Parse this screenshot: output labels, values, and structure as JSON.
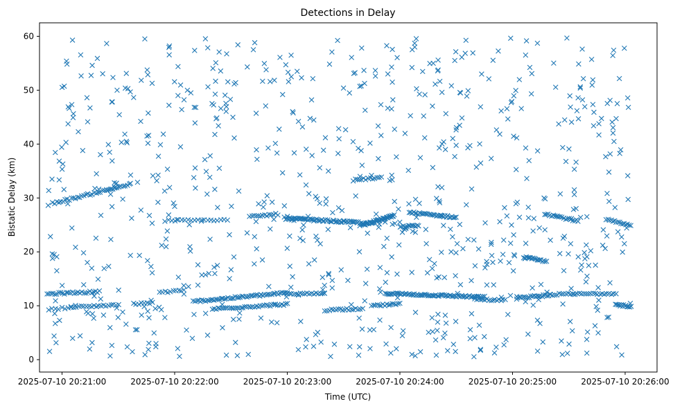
{
  "chart_data": {
    "type": "scatter",
    "title": "Detections in Delay",
    "xlabel": "Time (UTC)",
    "ylabel": "Bistatic Delay (km)",
    "marker": "x",
    "color": "#1f77b4",
    "grid": false,
    "legend": "none",
    "x_ticks": [
      "2025-07-10 20:21:00",
      "2025-07-10 20:22:00",
      "2025-07-10 20:23:00",
      "2025-07-10 20:24:00",
      "2025-07-10 20:25:00",
      "2025-07-10 20:26:00"
    ],
    "y_ticks": [
      "0",
      "10",
      "20",
      "30",
      "40",
      "50",
      "60"
    ],
    "xlim": [
      "2025-07-10 20:20:48",
      "2025-07-10 20:26:17"
    ],
    "ylim": [
      -2.3,
      62.5
    ],
    "series": [
      {
        "comment_omitted": "",
        "tracks": [
          {
            "x": [
              "2025-07-10 20:20:52",
              "2025-07-10 20:21:20"
            ],
            "y": [
              12.2,
              12.6
            ],
            "count": 28
          },
          {
            "x": [
              "2025-07-10 20:20:53",
              "2025-07-10 20:21:05"
            ],
            "y": [
              9.4,
              9.7
            ],
            "count": 8
          },
          {
            "x": [
              "2025-07-10 20:21:05",
              "2025-07-10 20:21:30"
            ],
            "y": [
              9.7,
              10.2
            ],
            "count": 20
          },
          {
            "x": [
              "2025-07-10 20:20:55",
              "2025-07-10 20:21:36"
            ],
            "y": [
              29.0,
              32.5
            ],
            "count": 38
          },
          {
            "x": [
              "2025-07-10 20:21:38",
              "2025-07-10 20:21:48"
            ],
            "y": [
              10.3,
              10.5
            ],
            "count": 8
          },
          {
            "x": [
              "2025-07-10 20:21:55",
              "2025-07-10 20:22:28"
            ],
            "y": [
              25.8,
              25.9
            ],
            "count": 20
          },
          {
            "x": [
              "2025-07-10 20:21:52",
              "2025-07-10 20:22:05"
            ],
            "y": [
              12.5,
              12.8
            ],
            "count": 10
          },
          {
            "x": [
              "2025-07-10 20:22:10",
              "2025-07-10 20:23:00"
            ],
            "y": [
              10.8,
              12.4
            ],
            "count": 55
          },
          {
            "x": [
              "2025-07-10 20:22:20",
              "2025-07-10 20:23:00"
            ],
            "y": [
              9.4,
              10.3
            ],
            "count": 40
          },
          {
            "x": [
              "2025-07-10 20:22:40",
              "2025-07-10 20:22:55"
            ],
            "y": [
              26.5,
              27.0
            ],
            "count": 14
          },
          {
            "x": [
              "2025-07-10 20:23:00",
              "2025-07-10 20:23:40"
            ],
            "y": [
              26.2,
              25.4
            ],
            "count": 60
          },
          {
            "x": [
              "2025-07-10 20:23:00",
              "2025-07-10 20:23:20"
            ],
            "y": [
              12.1,
              12.3
            ],
            "count": 18
          },
          {
            "x": [
              "2025-07-10 20:23:20",
              "2025-07-10 20:23:40"
            ],
            "y": [
              9.2,
              9.5
            ],
            "count": 18
          },
          {
            "x": [
              "2025-07-10 20:23:35",
              "2025-07-10 20:23:50"
            ],
            "y": [
              33.3,
              33.8
            ],
            "count": 14
          },
          {
            "x": [
              "2025-07-10 20:23:40",
              "2025-07-10 20:23:57"
            ],
            "y": [
              25.0,
              26.7
            ],
            "count": 45
          },
          {
            "x": [
              "2025-07-10 20:23:45",
              "2025-07-10 20:24:00"
            ],
            "y": [
              10.0,
              10.3
            ],
            "count": 16
          },
          {
            "x": [
              "2025-07-10 20:23:52",
              "2025-07-10 20:24:45"
            ],
            "y": [
              12.3,
              11.6
            ],
            "count": 75
          },
          {
            "x": [
              "2025-07-10 20:24:00",
              "2025-07-10 20:24:10"
            ],
            "y": [
              24.6,
              24.9
            ],
            "count": 14
          },
          {
            "x": [
              "2025-07-10 20:24:05",
              "2025-07-10 20:24:30"
            ],
            "y": [
              27.3,
              26.4
            ],
            "count": 34
          },
          {
            "x": [
              "2025-07-10 20:24:40",
              "2025-07-10 20:24:56"
            ],
            "y": [
              11.2,
              11.0
            ],
            "count": 16
          },
          {
            "x": [
              "2025-07-10 20:25:02",
              "2025-07-10 20:25:20"
            ],
            "y": [
              11.4,
              12.0
            ],
            "count": 22
          },
          {
            "x": [
              "2025-07-10 20:25:06",
              "2025-07-10 20:25:18"
            ],
            "y": [
              19.0,
              18.2
            ],
            "count": 18
          },
          {
            "x": [
              "2025-07-10 20:25:20",
              "2025-07-10 20:25:55"
            ],
            "y": [
              12.1,
              12.3
            ],
            "count": 30
          },
          {
            "x": [
              "2025-07-10 20:25:17",
              "2025-07-10 20:25:35"
            ],
            "y": [
              27.1,
              25.7
            ],
            "count": 20
          },
          {
            "x": [
              "2025-07-10 20:25:50",
              "2025-07-10 20:26:03"
            ],
            "y": [
              26.0,
              24.8
            ],
            "count": 16
          },
          {
            "x": [
              "2025-07-10 20:25:55",
              "2025-07-10 20:26:03"
            ],
            "y": [
              10.2,
              9.9
            ],
            "count": 14
          }
        ],
        "scatter_noise": {
          "x_range": [
            "2025-07-10 20:20:52",
            "2025-07-10 20:26:03"
          ],
          "y_range": [
            0.5,
            59.8
          ],
          "count": 800
        }
      }
    ]
  }
}
